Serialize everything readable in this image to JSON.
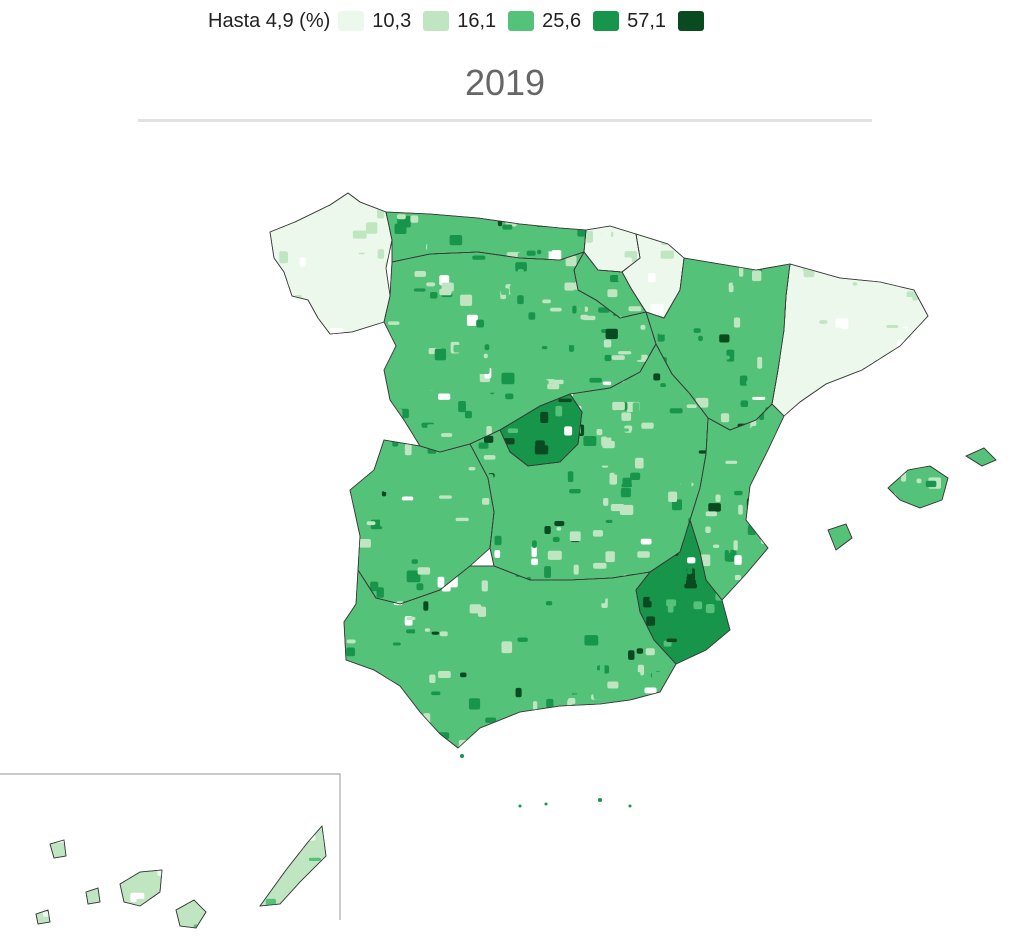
{
  "legend": {
    "label": "Hasta 4,9 (%)",
    "thresholds": [
      "10,3",
      "16,1",
      "25,6",
      "57,1"
    ],
    "colors": [
      "#edf8ec",
      "#bfe6c0",
      "#55c279",
      "#17954a",
      "#0a4a20"
    ]
  },
  "title": "2019",
  "map": {
    "regions": [
      {
        "id": "galicia",
        "level": 0
      },
      {
        "id": "asturias-cantabria",
        "level": 2
      },
      {
        "id": "pais-vasco",
        "level": 0
      },
      {
        "id": "navarra",
        "level": 0
      },
      {
        "id": "cataluna",
        "level": 0
      },
      {
        "id": "castilla-leon",
        "level": 2
      },
      {
        "id": "la-rioja",
        "level": 2
      },
      {
        "id": "aragon",
        "level": 2
      },
      {
        "id": "madrid",
        "level": 3
      },
      {
        "id": "castilla-la-mancha",
        "level": 2
      },
      {
        "id": "extremadura",
        "level": 2
      },
      {
        "id": "valencia",
        "level": 2
      },
      {
        "id": "murcia",
        "level": 3
      },
      {
        "id": "andalucia",
        "level": 2
      },
      {
        "id": "baleares",
        "level": 2
      },
      {
        "id": "canarias",
        "level": 1
      }
    ]
  }
}
